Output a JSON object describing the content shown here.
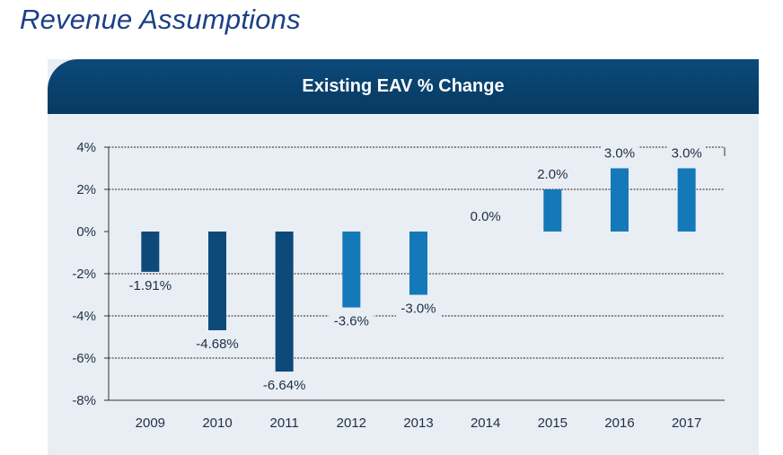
{
  "page": {
    "title": "Revenue Assumptions"
  },
  "colors": {
    "title": "#1c3f86",
    "header_bg": "#0b4676",
    "panel_bg": "#e9eef4",
    "bar_dark": "#0d4a79",
    "bar_light": "#1479b8"
  },
  "chart_data": {
    "type": "bar",
    "title": "Existing EAV % Change",
    "xlabel": "",
    "ylabel": "",
    "categories": [
      "2009",
      "2010",
      "2011",
      "2012",
      "2013",
      "2014",
      "2015",
      "2016",
      "2017"
    ],
    "values": [
      -1.91,
      -4.68,
      -6.64,
      -3.6,
      -3.0,
      0.0,
      2.0,
      3.0,
      3.0
    ],
    "data_labels": [
      "-1.91%",
      "-4.68%",
      "-6.64%",
      "-3.6%",
      "-3.0%",
      "0.0%",
      "2.0%",
      "3.0%",
      "3.0%"
    ],
    "bar_shades": [
      "dark",
      "dark",
      "dark",
      "light",
      "light",
      "light",
      "light",
      "light",
      "light"
    ],
    "ylim": [
      -8,
      4
    ],
    "yticks": [
      4,
      2,
      0,
      -2,
      -4,
      -6,
      -8
    ],
    "ytick_labels": [
      "4%",
      "2%",
      "0%",
      "-2%",
      "-4%",
      "-6%",
      "-8%"
    ],
    "grid": true,
    "legend": "none"
  }
}
